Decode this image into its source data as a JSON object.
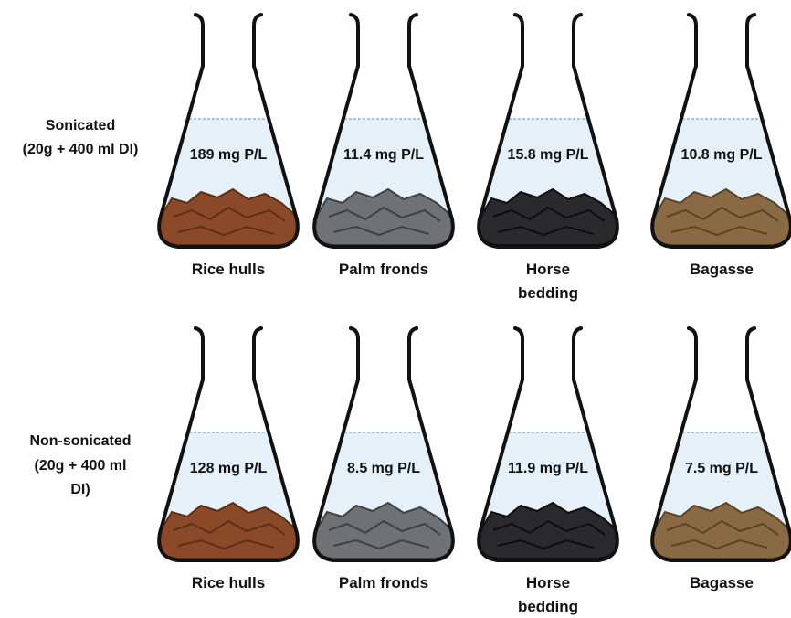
{
  "rows": [
    {
      "label": [
        "Sonicated",
        "(20g + 400 ml DI)"
      ],
      "flasks": [
        {
          "value": "189 mg P/L",
          "name": "Rice hulls"
        },
        {
          "value": "11.4 mg P/L",
          "name": "Palm fronds"
        },
        {
          "value": "15.8 mg P/L",
          "name": "Horse bedding"
        },
        {
          "value": "10.8 mg P/L",
          "name": "Bagasse"
        }
      ]
    },
    {
      "label": [
        "Non-sonicated",
        "(20g + 400 ml",
        "DI)"
      ],
      "flasks": [
        {
          "value": "128 mg P/L",
          "name": "Rice hulls"
        },
        {
          "value": "8.5 mg P/L",
          "name": "Palm fronds"
        },
        {
          "value": "11.9 mg P/L",
          "name": "Horse bedding"
        },
        {
          "value": "7.5 mg P/L",
          "name": "Bagasse"
        }
      ]
    }
  ]
}
